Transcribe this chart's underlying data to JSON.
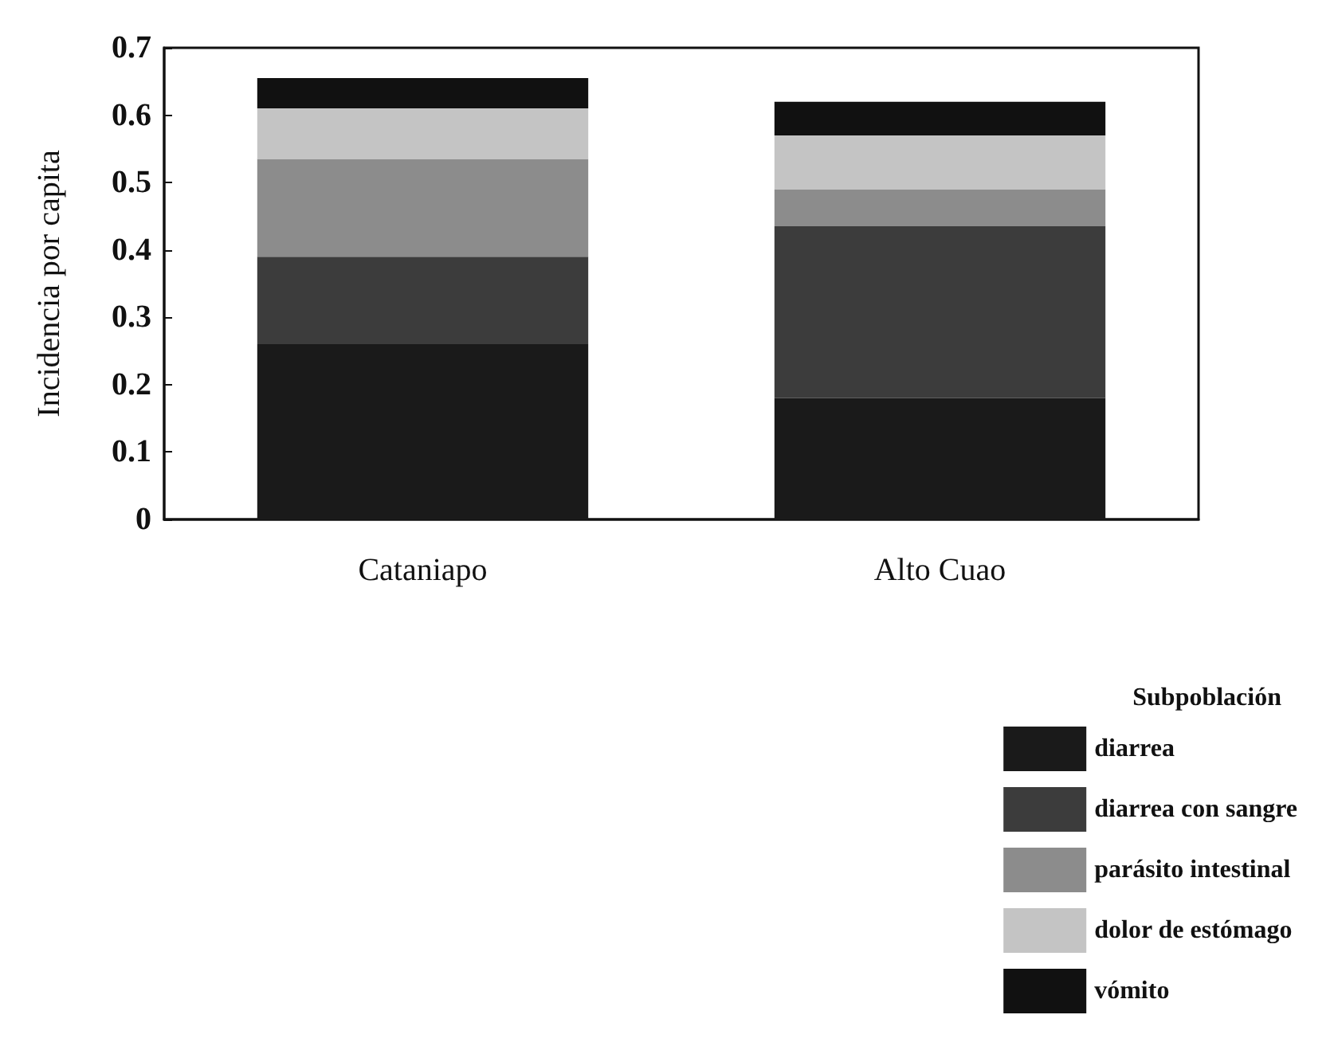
{
  "chart_data": {
    "type": "bar",
    "stacked": true,
    "ylabel": "Incidencia por capita",
    "legend_title": "Subpoblación",
    "legend": "bottom right",
    "categories": [
      "Cataniapo",
      "Alto Cuao"
    ],
    "series": [
      {
        "name": "diarrea",
        "color": "#1a1a1a",
        "values": [
          0.26,
          0.18
        ]
      },
      {
        "name": "diarrea con sangre",
        "color": "#3c3c3c",
        "values": [
          0.13,
          0.255
        ]
      },
      {
        "name": "parásito intestinal",
        "color": "#8c8c8c",
        "values": [
          0.145,
          0.055
        ]
      },
      {
        "name": "dolor de estómago",
        "color": "#c4c4c4",
        "values": [
          0.075,
          0.08
        ]
      },
      {
        "name": "vómito",
        "color": "#111111",
        "values": [
          0.045,
          0.05
        ]
      }
    ],
    "ylim": [
      0,
      0.7
    ],
    "yticks": [
      0,
      0.1,
      0.2,
      0.3,
      0.4,
      0.5,
      0.6,
      0.7
    ],
    "grid": false
  }
}
